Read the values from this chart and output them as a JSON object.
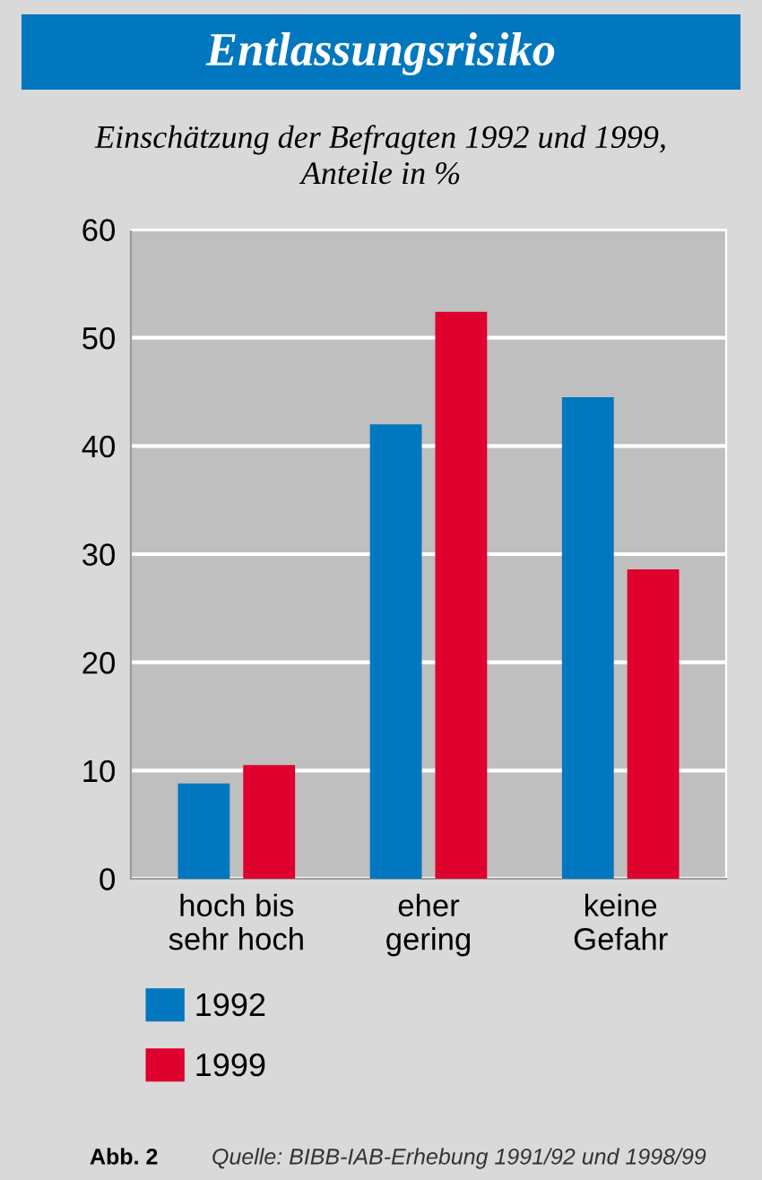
{
  "chart_data": {
    "type": "bar",
    "title": "Entlassungsrisiko",
    "subtitle": "Einschätzung der Befragten 1992 und 1999,\nAnteile in %",
    "categories": [
      "hoch bis\nsehr hoch",
      "eher\ngering",
      "keine\nGefahr"
    ],
    "series": [
      {
        "name": "1992",
        "color": "#0077bf",
        "values": [
          8.8,
          42.0,
          44.5
        ]
      },
      {
        "name": "1999",
        "color": "#de002d",
        "values": [
          10.5,
          52.4,
          28.6
        ]
      }
    ],
    "ylim": [
      0,
      60
    ],
    "yticks": [
      0,
      10,
      20,
      30,
      40,
      50,
      60
    ],
    "grid": "y",
    "legend": "bottom left",
    "annotations": [
      "Abb. 2",
      "Quelle: BIBB-IAB-Erhebung 1991/92 und 1998/99"
    ]
  }
}
